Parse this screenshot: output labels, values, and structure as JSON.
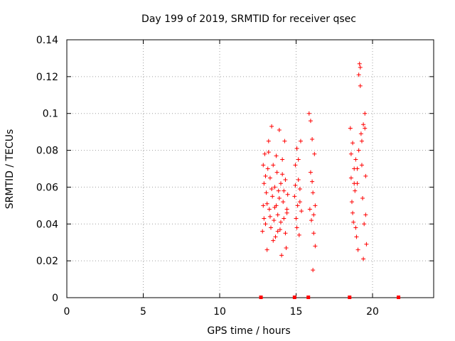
{
  "chart_data": {
    "type": "scatter",
    "title": "Day 199 of 2019, SRMTID for receiver qsec",
    "xlabel": "GPS time / hours",
    "ylabel": "SRMTID / TECUs",
    "xlim": [
      0,
      24
    ],
    "ylim": [
      0,
      0.14
    ],
    "xticks": [
      "0",
      "5",
      "10",
      "15",
      "20"
    ],
    "yticks": [
      "0",
      "0.02",
      "0.04",
      "0.06",
      "0.08",
      "0.1",
      "0.12",
      "0.14"
    ],
    "grid": true,
    "marker": "+",
    "color": "#ff0000",
    "series": [
      {
        "points": [
          [
            12.8,
            0.036
          ],
          [
            12.85,
            0.05
          ],
          [
            12.9,
            0.062
          ],
          [
            12.95,
            0.078
          ],
          [
            13.0,
            0.04
          ],
          [
            13.05,
            0.057
          ],
          [
            13.1,
            0.026
          ],
          [
            13.15,
            0.07
          ],
          [
            13.2,
            0.085
          ],
          [
            13.25,
            0.048
          ],
          [
            13.3,
            0.065
          ],
          [
            13.35,
            0.038
          ],
          [
            13.4,
            0.093
          ],
          [
            13.45,
            0.055
          ],
          [
            13.5,
            0.072
          ],
          [
            13.55,
            0.042
          ],
          [
            13.6,
            0.06
          ],
          [
            13.65,
            0.033
          ],
          [
            13.7,
            0.05
          ],
          [
            13.75,
            0.068
          ],
          [
            13.8,
            0.045
          ],
          [
            13.85,
            0.058
          ],
          [
            13.9,
            0.091
          ],
          [
            13.95,
            0.037
          ],
          [
            14.0,
            0.062
          ],
          [
            14.05,
            0.023
          ],
          [
            14.1,
            0.075
          ],
          [
            14.15,
            0.052
          ],
          [
            14.2,
            0.043
          ],
          [
            14.25,
            0.085
          ],
          [
            14.3,
            0.064
          ],
          [
            14.35,
            0.027
          ],
          [
            14.4,
            0.048
          ],
          [
            14.45,
            0.056
          ],
          [
            12.85,
            0.072
          ],
          [
            12.9,
            0.043
          ],
          [
            13.0,
            0.066
          ],
          [
            13.1,
            0.051
          ],
          [
            13.2,
            0.079
          ],
          [
            13.3,
            0.044
          ],
          [
            13.4,
            0.059
          ],
          [
            13.5,
            0.031
          ],
          [
            13.6,
            0.049
          ],
          [
            13.7,
            0.077
          ],
          [
            13.8,
            0.036
          ],
          [
            13.9,
            0.054
          ],
          [
            14.0,
            0.041
          ],
          [
            14.1,
            0.067
          ],
          [
            14.2,
            0.058
          ],
          [
            14.3,
            0.035
          ],
          [
            14.4,
            0.046
          ],
          [
            14.9,
            0.055
          ],
          [
            14.95,
            0.072
          ],
          [
            15.0,
            0.043
          ],
          [
            15.05,
            0.081
          ],
          [
            15.1,
            0.05
          ],
          [
            15.15,
            0.064
          ],
          [
            15.2,
            0.034
          ],
          [
            15.25,
            0.059
          ],
          [
            15.3,
            0.085
          ],
          [
            15.35,
            0.047
          ],
          [
            14.95,
            0.061
          ],
          [
            15.05,
            0.038
          ],
          [
            15.15,
            0.075
          ],
          [
            15.25,
            0.052
          ],
          [
            15.85,
            0.1
          ],
          [
            15.9,
            0.048
          ],
          [
            15.95,
            0.068
          ],
          [
            16.0,
            0.042
          ],
          [
            16.05,
            0.086
          ],
          [
            16.1,
            0.057
          ],
          [
            16.15,
            0.035
          ],
          [
            16.2,
            0.078
          ],
          [
            16.25,
            0.05
          ],
          [
            16.1,
            0.015
          ],
          [
            15.95,
            0.096
          ],
          [
            16.05,
            0.063
          ],
          [
            16.15,
            0.045
          ],
          [
            16.25,
            0.028
          ],
          [
            18.55,
            0.092
          ],
          [
            18.6,
            0.065
          ],
          [
            18.65,
            0.052
          ],
          [
            18.7,
            0.084
          ],
          [
            18.75,
            0.041
          ],
          [
            18.8,
            0.07
          ],
          [
            18.85,
            0.058
          ],
          [
            18.9,
            0.075
          ],
          [
            18.95,
            0.033
          ],
          [
            19.0,
            0.062
          ],
          [
            19.05,
            0.026
          ],
          [
            19.1,
            0.08
          ],
          [
            19.15,
            0.127
          ],
          [
            19.2,
            0.125
          ],
          [
            19.25,
            0.089
          ],
          [
            19.3,
            0.072
          ],
          [
            19.35,
            0.054
          ],
          [
            19.4,
            0.094
          ],
          [
            19.45,
            0.04
          ],
          [
            19.5,
            0.1
          ],
          [
            19.55,
            0.066
          ],
          [
            19.6,
            0.029
          ],
          [
            18.6,
            0.078
          ],
          [
            18.7,
            0.046
          ],
          [
            18.8,
            0.062
          ],
          [
            18.9,
            0.038
          ],
          [
            19.0,
            0.07
          ],
          [
            19.1,
            0.121
          ],
          [
            19.2,
            0.115
          ],
          [
            19.3,
            0.085
          ],
          [
            19.4,
            0.021
          ],
          [
            19.5,
            0.092
          ],
          [
            19.55,
            0.045
          ]
        ]
      }
    ],
    "baseline_markers_x": [
      12.7,
      14.9,
      15.8,
      18.5,
      21.7
    ]
  }
}
